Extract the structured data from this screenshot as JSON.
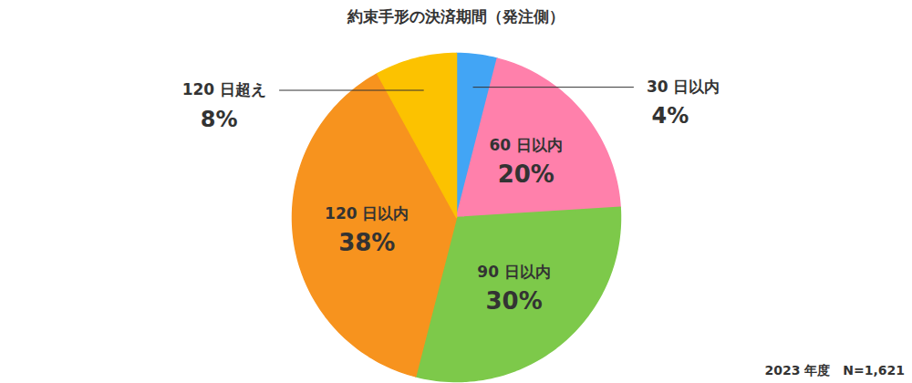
{
  "chart_data": {
    "type": "pie",
    "title": "約束手形の決済期間（発注側）",
    "caption": "2023 年度　N=1,621",
    "categories": [
      "30 日以内",
      "60 日以内",
      "90 日以内",
      "120 日以内",
      "120 日超え"
    ],
    "values": [
      4,
      20,
      30,
      38,
      8
    ],
    "value_labels": [
      "4%",
      "20%",
      "30%",
      "38%",
      "8%"
    ],
    "colors": [
      "#42a5f5",
      "#ff80ab",
      "#7dc94a",
      "#f7931e",
      "#fcc200"
    ],
    "data_labels": true
  }
}
